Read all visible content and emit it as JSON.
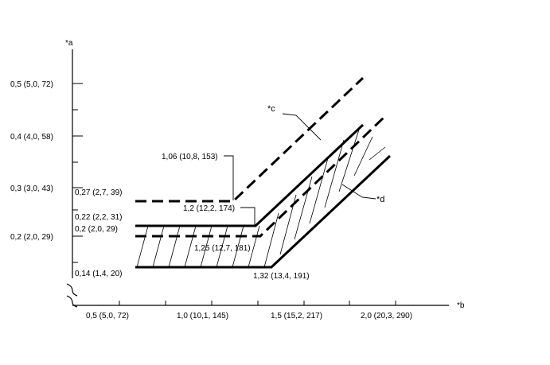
{
  "axes": {
    "y_label": "*a",
    "x_label": "*b",
    "y_ticks": [
      "0,5 (5,0, 72)",
      "0,4 (4,0, 58)",
      "0,3 (3,0, 43)",
      "0,2 (2,0, 29)"
    ],
    "x_ticks": [
      "0,5 (5,0, 72)",
      "1,0 (10,1, 145)",
      "1,5 (15,2, 217)",
      "2,0 (20,3, 290)"
    ]
  },
  "callouts": {
    "c": "*c",
    "d": "*d"
  },
  "annotations": {
    "p106": "1,06 (10,8, 153)",
    "p027": "0,27 (2,7, 39)",
    "p12": "1,2 (12,2, 174)",
    "p022": "0,22 (2,2, 31)",
    "p02": "0,2 (2,0, 29)",
    "p125": "1,25 (12,7, 181)",
    "p014": "0,14 (1,4, 20)",
    "p132": "1,32 (13,4, 191)"
  }
}
